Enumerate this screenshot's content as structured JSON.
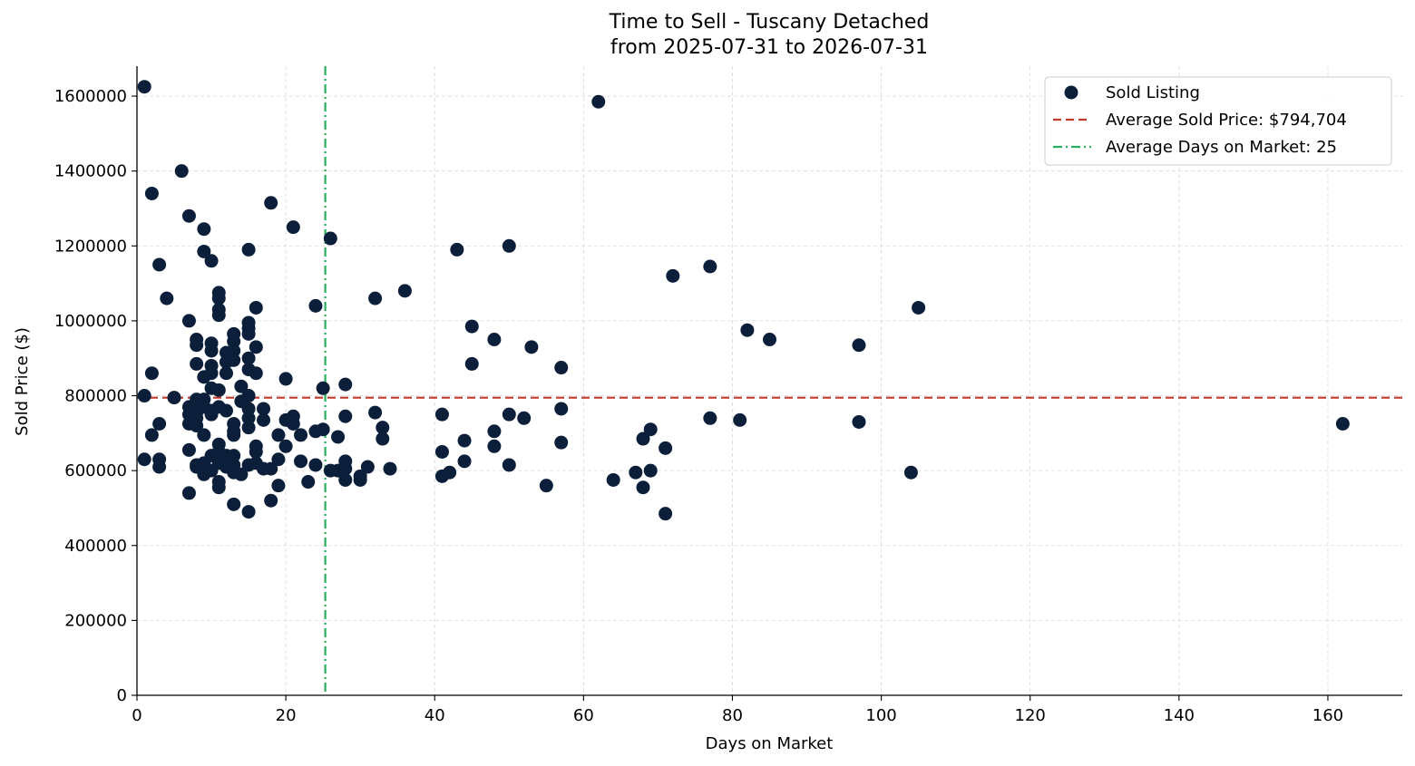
{
  "chart_data": {
    "type": "scatter",
    "title": "Time to Sell - Tuscany Detached",
    "subtitle": "from 2025-07-31 to 2026-07-31",
    "xlabel": "Days on Market",
    "ylabel": "Sold Price ($)",
    "xlim": [
      0,
      170
    ],
    "ylim": [
      0,
      1680000
    ],
    "xticks": [
      0,
      20,
      40,
      60,
      80,
      100,
      120,
      140,
      160
    ],
    "yticks": [
      0,
      200000,
      400000,
      600000,
      800000,
      1000000,
      1200000,
      1400000,
      1600000
    ],
    "grid": true,
    "legend_position": "top-right",
    "colors": {
      "points": "#0b1f3a",
      "avg_price": "#c0392b",
      "avg_days": "#27ae60",
      "grid": "#d9d9d9"
    },
    "legend": [
      {
        "label": "Sold Listing",
        "kind": "marker"
      },
      {
        "label": "Average Sold Price: $794,704",
        "kind": "dashed"
      },
      {
        "label": "Average Days on Market: 25",
        "kind": "dashdot"
      }
    ],
    "reference_lines": {
      "avg_price": 794704,
      "avg_days": 25.3
    },
    "series": [
      {
        "name": "Sold Listing",
        "points": [
          [
            1,
            1625000
          ],
          [
            1,
            630000
          ],
          [
            1,
            800000
          ],
          [
            2,
            1340000
          ],
          [
            2,
            860000
          ],
          [
            2,
            695000
          ],
          [
            3,
            1150000
          ],
          [
            3,
            725000
          ],
          [
            3,
            630000
          ],
          [
            3,
            610000
          ],
          [
            4,
            1060000
          ],
          [
            5,
            795000
          ],
          [
            6,
            1400000
          ],
          [
            7,
            1280000
          ],
          [
            7,
            1000000
          ],
          [
            7,
            770000
          ],
          [
            7,
            750000
          ],
          [
            7,
            725000
          ],
          [
            7,
            655000
          ],
          [
            7,
            540000
          ],
          [
            8,
            950000
          ],
          [
            8,
            935000
          ],
          [
            8,
            885000
          ],
          [
            8,
            790000
          ],
          [
            8,
            770000
          ],
          [
            8,
            755000
          ],
          [
            8,
            740000
          ],
          [
            8,
            720000
          ],
          [
            8,
            615000
          ],
          [
            8,
            610000
          ],
          [
            9,
            1245000
          ],
          [
            9,
            1185000
          ],
          [
            9,
            850000
          ],
          [
            9,
            790000
          ],
          [
            9,
            770000
          ],
          [
            9,
            695000
          ],
          [
            9,
            620000
          ],
          [
            9,
            605000
          ],
          [
            9,
            590000
          ],
          [
            10,
            1160000
          ],
          [
            10,
            940000
          ],
          [
            10,
            920000
          ],
          [
            10,
            880000
          ],
          [
            10,
            860000
          ],
          [
            10,
            820000
          ],
          [
            10,
            760000
          ],
          [
            10,
            750000
          ],
          [
            10,
            640000
          ],
          [
            10,
            600000
          ],
          [
            11,
            1075000
          ],
          [
            11,
            1060000
          ],
          [
            11,
            1030000
          ],
          [
            11,
            1015000
          ],
          [
            11,
            815000
          ],
          [
            11,
            770000
          ],
          [
            11,
            670000
          ],
          [
            11,
            650000
          ],
          [
            11,
            620000
          ],
          [
            11,
            570000
          ],
          [
            11,
            555000
          ],
          [
            12,
            915000
          ],
          [
            12,
            890000
          ],
          [
            12,
            860000
          ],
          [
            12,
            760000
          ],
          [
            12,
            640000
          ],
          [
            12,
            610000
          ],
          [
            13,
            965000
          ],
          [
            13,
            945000
          ],
          [
            13,
            920000
          ],
          [
            13,
            895000
          ],
          [
            13,
            725000
          ],
          [
            13,
            705000
          ],
          [
            13,
            695000
          ],
          [
            13,
            640000
          ],
          [
            13,
            615000
          ],
          [
            13,
            595000
          ],
          [
            13,
            510000
          ],
          [
            14,
            825000
          ],
          [
            14,
            785000
          ],
          [
            14,
            590000
          ],
          [
            15,
            1190000
          ],
          [
            15,
            995000
          ],
          [
            15,
            980000
          ],
          [
            15,
            965000
          ],
          [
            15,
            900000
          ],
          [
            15,
            870000
          ],
          [
            15,
            800000
          ],
          [
            15,
            765000
          ],
          [
            15,
            740000
          ],
          [
            15,
            715000
          ],
          [
            15,
            615000
          ],
          [
            15,
            490000
          ],
          [
            16,
            1035000
          ],
          [
            16,
            930000
          ],
          [
            16,
            860000
          ],
          [
            16,
            665000
          ],
          [
            16,
            650000
          ],
          [
            16,
            620000
          ],
          [
            17,
            765000
          ],
          [
            17,
            735000
          ],
          [
            17,
            605000
          ],
          [
            18,
            1315000
          ],
          [
            18,
            605000
          ],
          [
            18,
            520000
          ],
          [
            19,
            695000
          ],
          [
            19,
            630000
          ],
          [
            19,
            560000
          ],
          [
            20,
            845000
          ],
          [
            20,
            735000
          ],
          [
            20,
            665000
          ],
          [
            21,
            1250000
          ],
          [
            21,
            745000
          ],
          [
            21,
            725000
          ],
          [
            22,
            695000
          ],
          [
            22,
            625000
          ],
          [
            23,
            570000
          ],
          [
            24,
            1040000
          ],
          [
            24,
            705000
          ],
          [
            24,
            615000
          ],
          [
            25,
            820000
          ],
          [
            25,
            710000
          ],
          [
            26,
            1220000
          ],
          [
            26,
            600000
          ],
          [
            27,
            690000
          ],
          [
            27,
            600000
          ],
          [
            28,
            830000
          ],
          [
            28,
            745000
          ],
          [
            28,
            625000
          ],
          [
            28,
            605000
          ],
          [
            28,
            575000
          ],
          [
            30,
            585000
          ],
          [
            30,
            575000
          ],
          [
            31,
            610000
          ],
          [
            32,
            1060000
          ],
          [
            32,
            755000
          ],
          [
            33,
            715000
          ],
          [
            33,
            685000
          ],
          [
            34,
            605000
          ],
          [
            36,
            1080000
          ],
          [
            41,
            750000
          ],
          [
            41,
            650000
          ],
          [
            41,
            585000
          ],
          [
            42,
            595000
          ],
          [
            43,
            1190000
          ],
          [
            44,
            680000
          ],
          [
            44,
            625000
          ],
          [
            45,
            985000
          ],
          [
            45,
            885000
          ],
          [
            48,
            950000
          ],
          [
            48,
            705000
          ],
          [
            48,
            665000
          ],
          [
            50,
            1200000
          ],
          [
            50,
            750000
          ],
          [
            50,
            615000
          ],
          [
            52,
            740000
          ],
          [
            53,
            930000
          ],
          [
            55,
            560000
          ],
          [
            57,
            875000
          ],
          [
            57,
            765000
          ],
          [
            57,
            675000
          ],
          [
            62,
            1585000
          ],
          [
            64,
            575000
          ],
          [
            67,
            595000
          ],
          [
            68,
            685000
          ],
          [
            68,
            555000
          ],
          [
            69,
            710000
          ],
          [
            69,
            600000
          ],
          [
            71,
            660000
          ],
          [
            71,
            485000
          ],
          [
            72,
            1120000
          ],
          [
            77,
            1145000
          ],
          [
            77,
            740000
          ],
          [
            81,
            735000
          ],
          [
            82,
            975000
          ],
          [
            85,
            950000
          ],
          [
            97,
            935000
          ],
          [
            97,
            730000
          ],
          [
            104,
            595000
          ],
          [
            105,
            1035000
          ],
          [
            162,
            725000
          ]
        ]
      }
    ]
  }
}
